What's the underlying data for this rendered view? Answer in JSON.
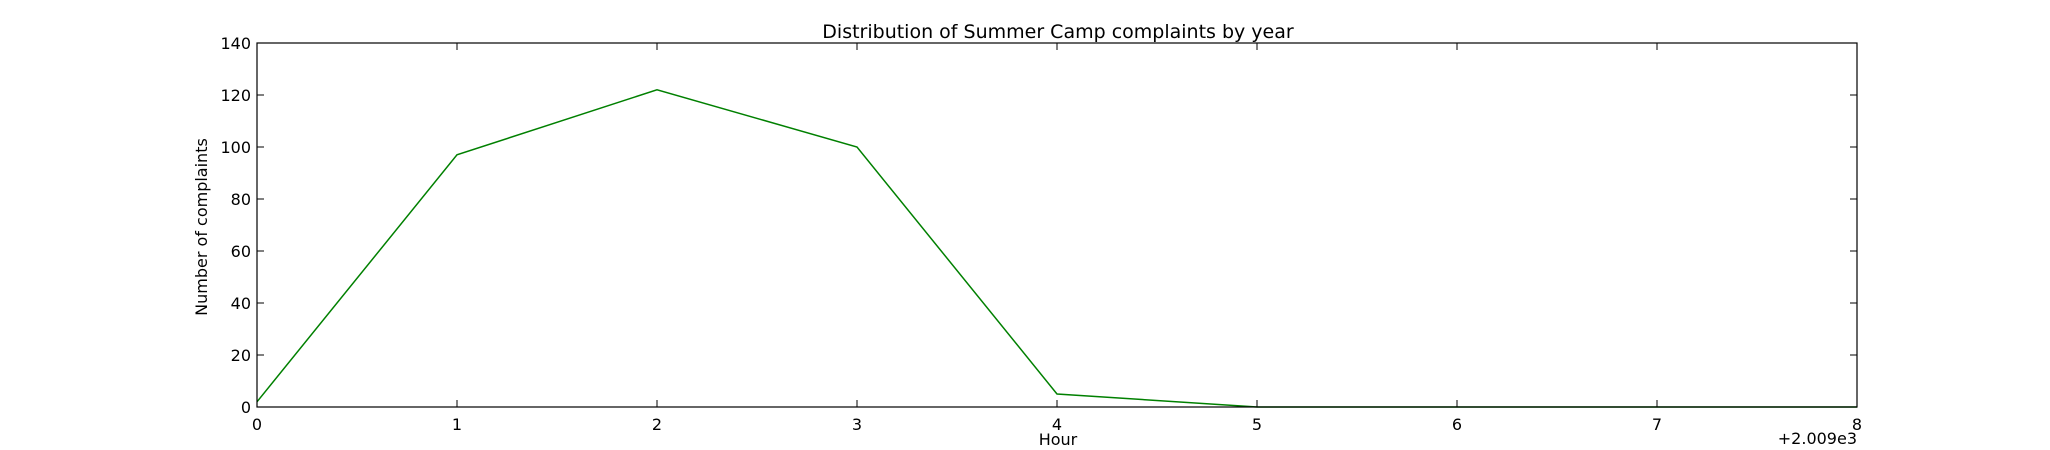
{
  "chart_data": {
    "type": "line",
    "title": "Distribution of  Summer Camp complaints by year",
    "xlabel": "Hour",
    "ylabel": "Number of complaints",
    "x_offset_label": "+2.009e3",
    "x": [
      0,
      1,
      2,
      3,
      4,
      5,
      6,
      7,
      8
    ],
    "x_ticks": [
      "0",
      "1",
      "2",
      "3",
      "4",
      "5",
      "6",
      "7",
      "8"
    ],
    "y_ticks": [
      "0",
      "20",
      "40",
      "60",
      "80",
      "100",
      "120",
      "140"
    ],
    "xlim": [
      0,
      8
    ],
    "ylim": [
      0,
      140
    ],
    "grid": false,
    "series": [
      {
        "color": "#008000",
        "values": [
          2,
          97,
          122,
          100,
          5,
          0,
          0,
          0,
          0
        ]
      }
    ]
  }
}
